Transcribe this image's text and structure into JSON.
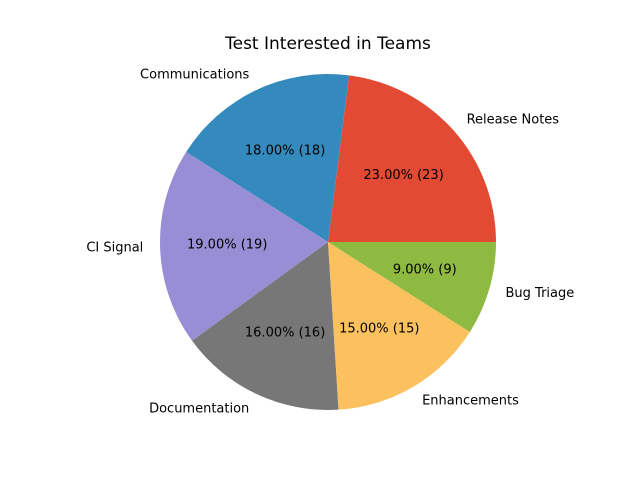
{
  "chart_data": {
    "type": "pie",
    "title": "Test Interested in Teams",
    "start_angle_deg": 0,
    "direction": "counterclockwise",
    "slices": [
      {
        "label": "Release Notes",
        "value": 23,
        "pct_text": "23.00%  (23)",
        "color": "#E24A33"
      },
      {
        "label": "Communications",
        "value": 18,
        "pct_text": "18.00%  (18)",
        "color": "#348ABD"
      },
      {
        "label": "CI Signal",
        "value": 19,
        "pct_text": "19.00%  (19)",
        "color": "#988ED5"
      },
      {
        "label": "Documentation",
        "value": 16,
        "pct_text": "16.00%  (16)",
        "color": "#777777"
      },
      {
        "label": "Enhancements",
        "value": 15,
        "pct_text": "15.00%  (15)",
        "color": "#FBC15E"
      },
      {
        "label": "Bug Triage",
        "value": 9,
        "pct_text": "9.00%  (9)",
        "color": "#8EBA42"
      }
    ]
  }
}
